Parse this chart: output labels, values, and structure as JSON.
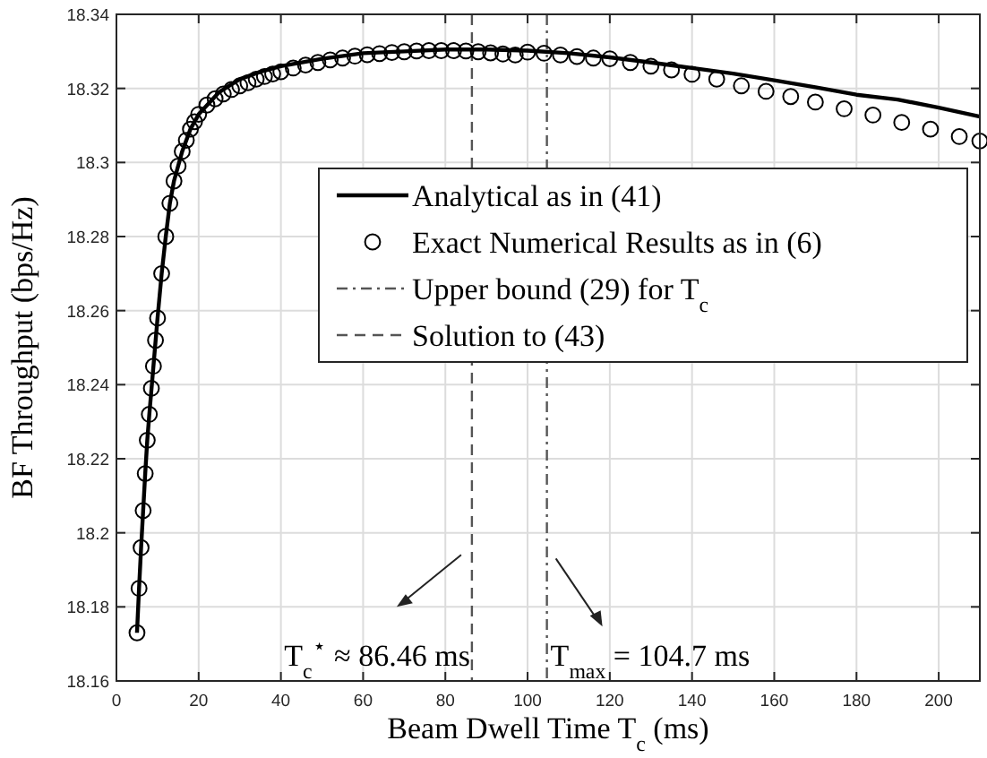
{
  "chart_data": {
    "type": "line",
    "xlabel": "Beam Dwell Time T$_{c}$ (ms)",
    "ylabel": "BF Throughput (bps/Hz)",
    "xlim": [
      0,
      210
    ],
    "xticks": [
      0,
      20,
      40,
      60,
      80,
      100,
      120,
      140,
      160,
      180,
      200
    ],
    "ylim": [
      18.16,
      18.34
    ],
    "yticks": [
      18.16,
      18.18,
      18.2,
      18.22,
      18.24,
      18.26,
      18.28,
      18.3,
      18.32,
      18.34
    ],
    "grid": true,
    "legend": "right",
    "series": [
      {
        "name": "Analytical as in (41)",
        "color": "#000000",
        "line_style": "solid",
        "x": [
          5,
          5.5,
          6,
          6.5,
          7,
          7.5,
          8,
          9,
          10,
          11,
          12,
          13,
          14,
          16,
          18,
          20,
          25,
          30,
          35,
          40,
          50,
          60,
          70,
          80,
          90,
          100,
          110,
          120,
          130,
          140,
          150,
          160,
          170,
          180,
          190,
          200,
          210
        ],
        "values": [
          18.173,
          18.185,
          18.196,
          18.206,
          18.216,
          18.225,
          18.232,
          18.245,
          18.258,
          18.27,
          18.28,
          18.289,
          18.295,
          18.303,
          18.309,
          18.313,
          18.319,
          18.3225,
          18.3245,
          18.326,
          18.328,
          18.3295,
          18.33,
          18.3305,
          18.3305,
          18.3302,
          18.3295,
          18.3284,
          18.327,
          18.3255,
          18.324,
          18.3222,
          18.3203,
          18.3183,
          18.317,
          18.3148,
          18.3124
        ]
      },
      {
        "name": "Exact Numerical Results as in (6)",
        "type": "scatter",
        "color": "#000000",
        "marker": "circle",
        "x": [
          5,
          5.5,
          6,
          6.5,
          7,
          7.5,
          8,
          8.5,
          9,
          9.5,
          10,
          11,
          12,
          13,
          14,
          15,
          16,
          17,
          18,
          19,
          20,
          22,
          24,
          26,
          28,
          30,
          32,
          34,
          36,
          38,
          40,
          43,
          46,
          49,
          52,
          55,
          58,
          61,
          64,
          67,
          70,
          73,
          76,
          79,
          82,
          85,
          88,
          91,
          94,
          97,
          100,
          104,
          108,
          112,
          116,
          120,
          125,
          130,
          135,
          140,
          146,
          152,
          158,
          164,
          170,
          177,
          184,
          191,
          198,
          205,
          210
        ],
        "values": [
          18.173,
          18.185,
          18.196,
          18.206,
          18.216,
          18.225,
          18.232,
          18.239,
          18.245,
          18.252,
          18.258,
          18.27,
          18.28,
          18.289,
          18.295,
          18.299,
          18.303,
          18.306,
          18.309,
          18.311,
          18.313,
          18.3155,
          18.3172,
          18.3185,
          18.3197,
          18.3207,
          18.3215,
          18.3225,
          18.3232,
          18.3239,
          18.3245,
          18.3255,
          18.3263,
          18.327,
          18.3277,
          18.3282,
          18.3287,
          18.3291,
          18.3294,
          18.3297,
          18.3299,
          18.3301,
          18.3302,
          18.3302,
          18.3302,
          18.3301,
          18.3299,
          18.3296,
          18.3293,
          18.329,
          18.3298,
          18.3295,
          18.329,
          18.3286,
          18.3282,
          18.328,
          18.327,
          18.326,
          18.325,
          18.3238,
          18.3225,
          18.3207,
          18.3192,
          18.3178,
          18.3163,
          18.3145,
          18.3128,
          18.3108,
          18.309,
          18.307,
          18.3058
        ]
      }
    ],
    "ref_lines": [
      {
        "axis": "x",
        "value": 104.7,
        "label": "Upper bound (29) for T$_{c}$",
        "line_style": "dashdot",
        "color": "#555555"
      },
      {
        "axis": "x",
        "value": 86.46,
        "label": "Solution to (43)",
        "line_style": "dashed",
        "color": "#555555"
      }
    ],
    "annotations": [
      {
        "text": "T$_{c}$$^{⋆}$ ≈ 86.46 ms",
        "x": 86.46,
        "y": 18.165
      },
      {
        "text": "T$_{max}$ = 104.7 ms",
        "x": 104.7,
        "y": 18.165
      }
    ]
  }
}
